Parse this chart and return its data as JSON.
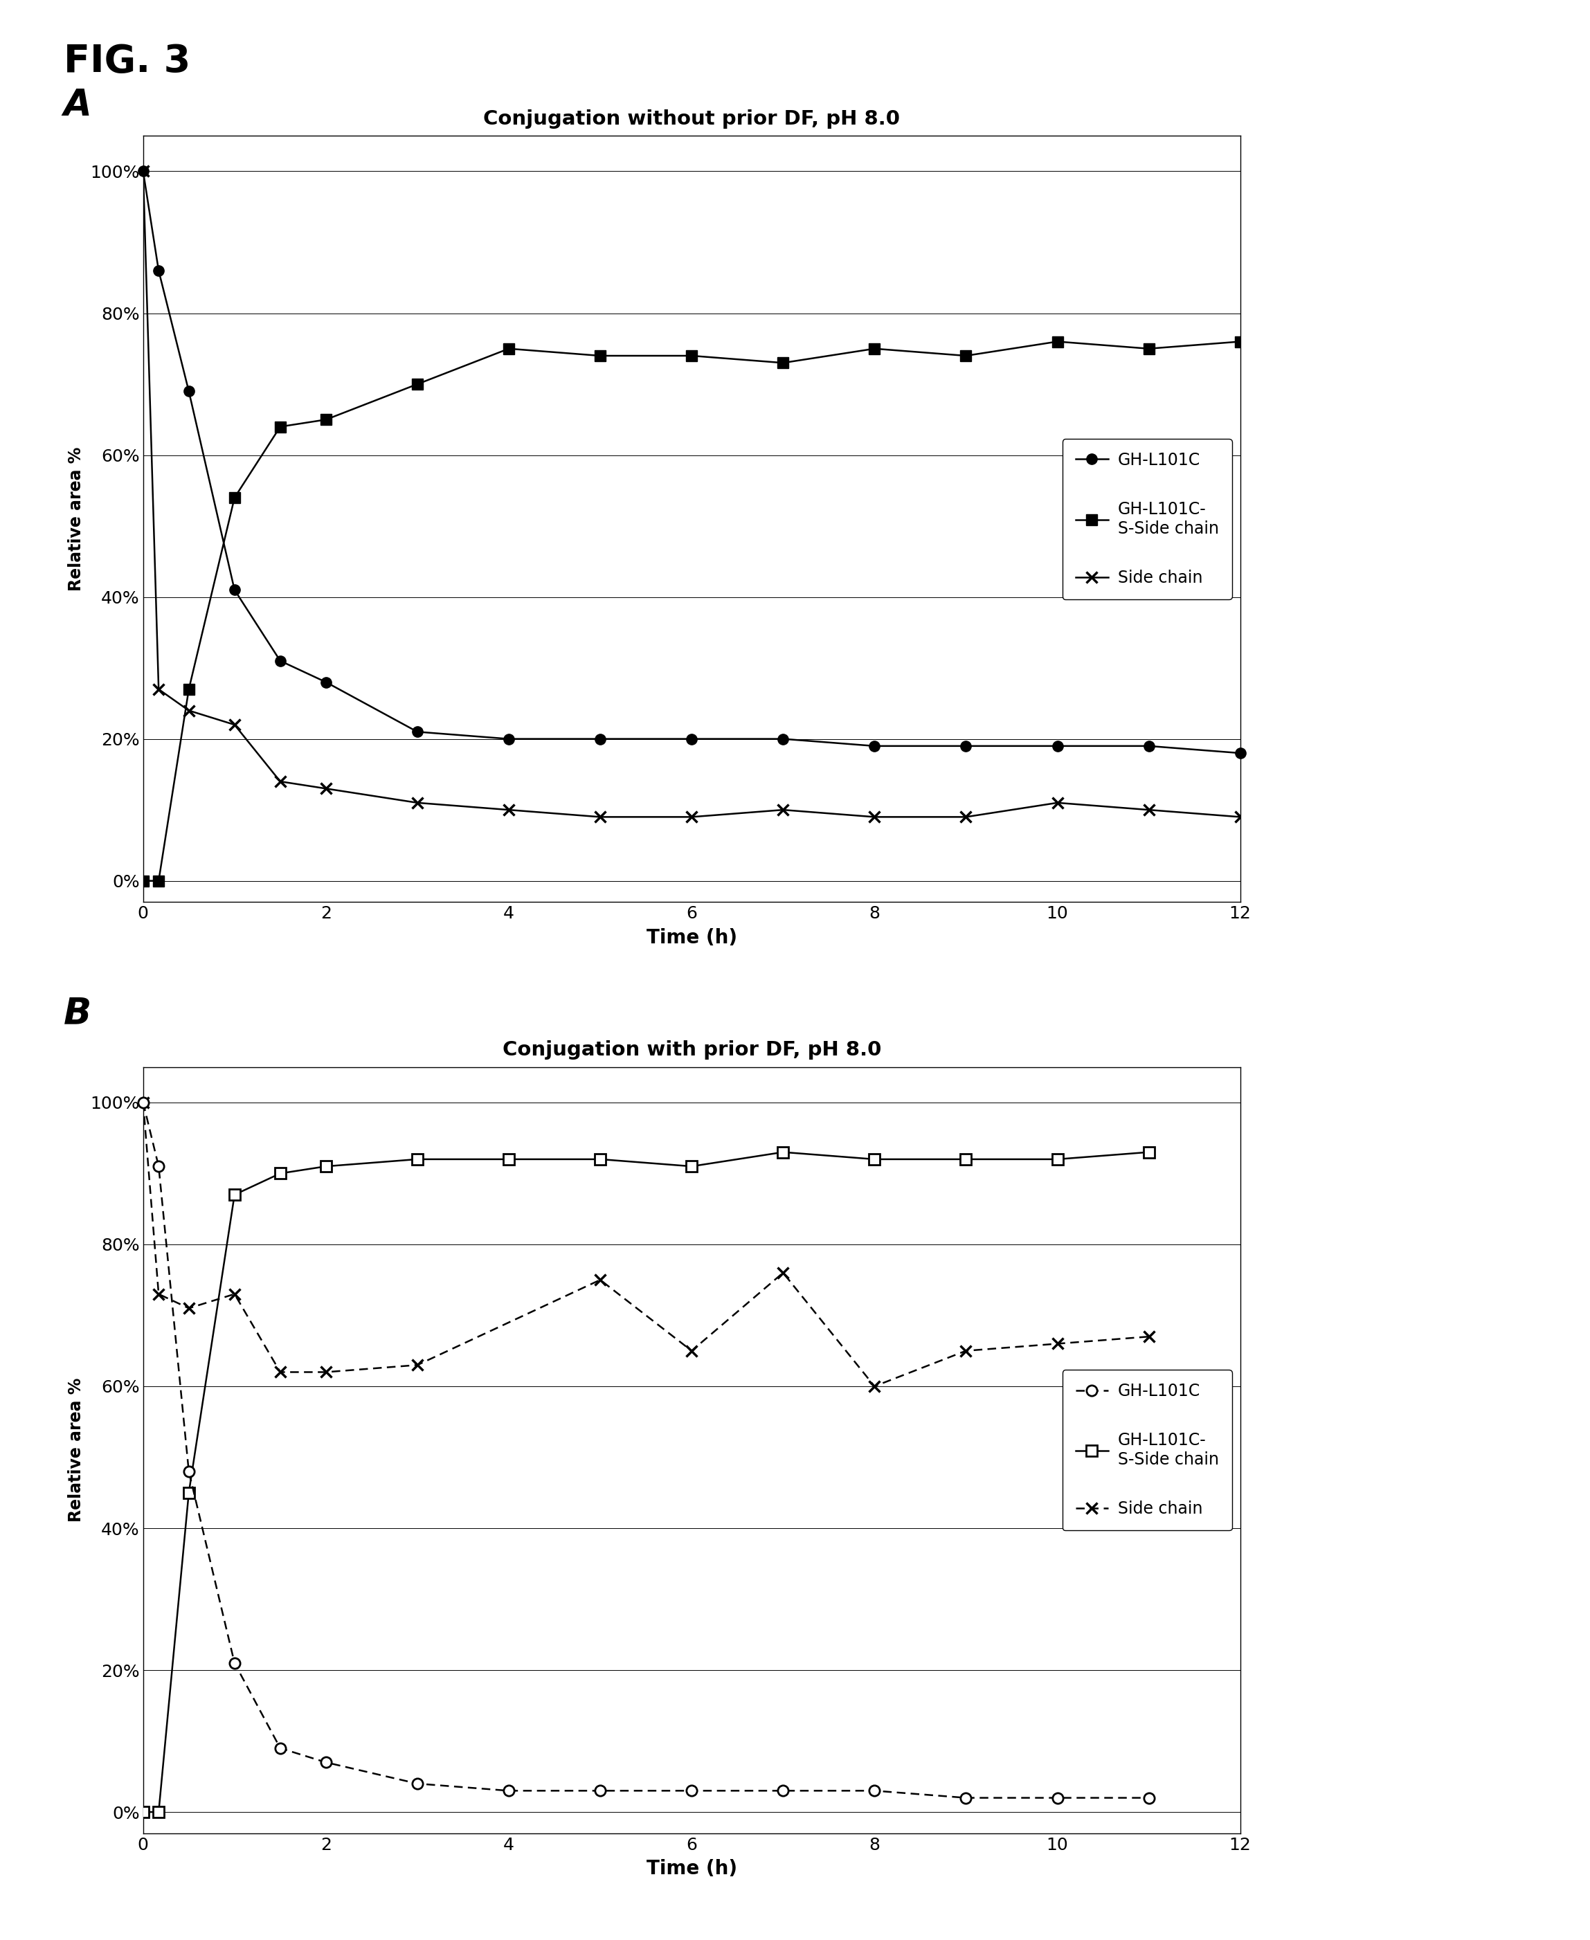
{
  "fig_label": "FIG. 3",
  "panel_A_label": "A",
  "panel_B_label": "B",
  "title_A": "Conjugation without prior DF, pH 8.0",
  "title_B": "Conjugation with prior DF, pH 8.0",
  "xlabel": "Time (h)",
  "ylabel": "Relative area %",
  "legend_1": "GH-L101C",
  "legend_2": "GH-L101C-\nS-Side chain",
  "legend_3": "Side chain",
  "A_x_GHL101C": [
    0,
    0.17,
    0.5,
    1,
    1.5,
    2,
    3,
    4,
    5,
    6,
    7,
    8,
    9,
    10,
    11,
    12
  ],
  "A_y_GHL101C": [
    100,
    86,
    69,
    41,
    31,
    28,
    21,
    20,
    20,
    20,
    20,
    19,
    19,
    19,
    19,
    18
  ],
  "A_x_conjugate": [
    0,
    0.17,
    0.5,
    1,
    1.5,
    2,
    3,
    4,
    5,
    6,
    7,
    8,
    9,
    10,
    11,
    12
  ],
  "A_y_conjugate": [
    0,
    0,
    27,
    54,
    64,
    65,
    70,
    75,
    74,
    74,
    73,
    75,
    74,
    76,
    75,
    76
  ],
  "A_x_sidechain": [
    0,
    0.17,
    0.5,
    1,
    1.5,
    2,
    3,
    4,
    5,
    6,
    7,
    8,
    9,
    10,
    11,
    12
  ],
  "A_y_sidechain": [
    100,
    27,
    24,
    22,
    14,
    13,
    11,
    10,
    9,
    9,
    10,
    9,
    9,
    11,
    10,
    9
  ],
  "B_x_GHL101C": [
    0,
    0.17,
    0.5,
    1,
    1.5,
    2,
    3,
    4,
    5,
    6,
    7,
    8,
    9,
    10,
    11
  ],
  "B_y_GHL101C": [
    100,
    91,
    48,
    21,
    9,
    7,
    4,
    3,
    3,
    3,
    3,
    3,
    2,
    2,
    2
  ],
  "B_x_conjugate": [
    0,
    0.17,
    0.5,
    1,
    1.5,
    2,
    3,
    4,
    5,
    6,
    7,
    8,
    9,
    10,
    11
  ],
  "B_y_conjugate": [
    0,
    0,
    45,
    87,
    90,
    91,
    92,
    92,
    92,
    91,
    93,
    92,
    92,
    92,
    93
  ],
  "B_x_sidechain": [
    0,
    0.17,
    0.5,
    1,
    1.5,
    2,
    3,
    5,
    6,
    7,
    8,
    9,
    10,
    11
  ],
  "B_y_sidechain": [
    100,
    73,
    71,
    73,
    62,
    62,
    63,
    75,
    65,
    76,
    60,
    65,
    66,
    67
  ],
  "xlim": [
    0,
    12
  ],
  "ylim": [
    0,
    105
  ],
  "yticks": [
    0,
    20,
    40,
    60,
    80,
    100
  ],
  "ytick_labels": [
    "0%",
    "20%",
    "40%",
    "60%",
    "80%",
    "100%"
  ],
  "xticks": [
    0,
    2,
    4,
    6,
    8,
    10,
    12
  ],
  "background_color": "#ffffff"
}
